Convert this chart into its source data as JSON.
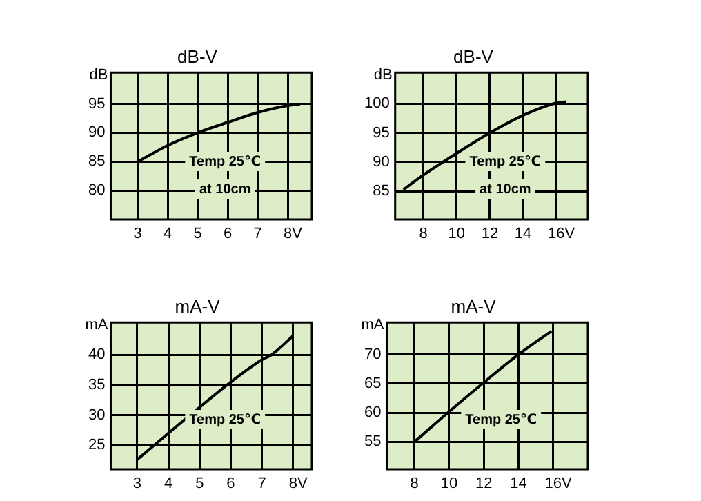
{
  "chart_data": [
    {
      "type": "line",
      "title": "dB-V",
      "ylabel": "dB",
      "xlabel": "V",
      "annotations": [
        "Temp 25℃",
        "at 10cm"
      ],
      "x": [
        3,
        4,
        5,
        6,
        7,
        8,
        8.4
      ],
      "series": [
        {
          "color": "#000000",
          "values": [
            85,
            87.8,
            90,
            91.8,
            93.5,
            94.7,
            94.9
          ]
        }
      ],
      "xlim": [
        2.1,
        8.8
      ],
      "xticks": [
        3,
        4,
        5,
        6,
        7,
        8
      ],
      "ylim": [
        75,
        100.4
      ],
      "yticks": [
        80,
        85,
        90,
        95
      ],
      "grid": true,
      "marker": "none",
      "line_style": "solid"
    },
    {
      "type": "line",
      "title": "dB-V",
      "ylabel": "dB",
      "xlabel": "V",
      "annotations": [
        "Temp 25℃",
        "at 10cm"
      ],
      "x": [
        6.8,
        8,
        10,
        12,
        14,
        16,
        16.6
      ],
      "series": [
        {
          "color": "#000000",
          "values": [
            85.3,
            87.8,
            91.5,
            95,
            98,
            100.1,
            100.3
          ]
        }
      ],
      "xlim": [
        6.3,
        17.9
      ],
      "xticks": [
        8,
        10,
        12,
        14,
        16
      ],
      "ylim": [
        80.2,
        105.3
      ],
      "yticks": [
        85,
        90,
        95,
        100
      ],
      "grid": true,
      "marker": "none",
      "line_style": "solid"
    },
    {
      "type": "line",
      "title": "mA-V",
      "ylabel": "mA",
      "xlabel": "V",
      "annotations": [
        "Temp 25℃"
      ],
      "x": [
        3,
        4,
        5,
        6,
        7,
        7.3,
        8
      ],
      "series": [
        {
          "color": "#000000",
          "values": [
            22.6,
            27,
            31.3,
            35.5,
            39.2,
            40,
            43.2
          ]
        }
      ],
      "xlim": [
        2.15,
        8.6
      ],
      "xticks": [
        3,
        4,
        5,
        6,
        7,
        8
      ],
      "ylim": [
        21,
        45.4
      ],
      "yticks": [
        25,
        30,
        35,
        40
      ],
      "grid": true,
      "marker": "none",
      "line_style": "solid"
    },
    {
      "type": "line",
      "title": "mA-V",
      "ylabel": "mA",
      "xlabel": "V",
      "annotations": [
        "Temp 25℃"
      ],
      "x": [
        8,
        10,
        12,
        14,
        15.9
      ],
      "series": [
        {
          "color": "#000000",
          "values": [
            55,
            60.2,
            65.2,
            70,
            74
          ]
        }
      ],
      "xlim": [
        6.4,
        18
      ],
      "xticks": [
        8,
        10,
        12,
        14,
        16
      ],
      "ylim": [
        50.3,
        75.5
      ],
      "yticks": [
        55,
        60,
        65,
        70
      ],
      "grid": true,
      "marker": "none",
      "line_style": "solid"
    }
  ]
}
